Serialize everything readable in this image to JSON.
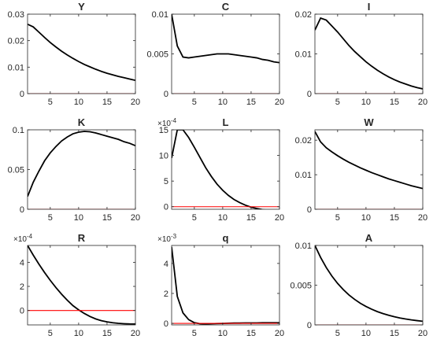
{
  "chart_data": [
    {
      "type": "line",
      "title": "Y",
      "xlim": [
        1,
        20
      ],
      "ylim": [
        0,
        0.03
      ],
      "xticks": [
        5,
        10,
        15,
        20
      ],
      "xtick_labels": [
        "5",
        "10",
        "15",
        "20"
      ],
      "yticks": [
        0,
        0.01,
        0.02,
        0.03
      ],
      "ytick_labels": [
        "0",
        "0.01",
        "0.02",
        "0.03"
      ],
      "exponent": "",
      "x": [
        1,
        2,
        3,
        4,
        5,
        6,
        7,
        8,
        9,
        10,
        11,
        12,
        13,
        14,
        15,
        16,
        17,
        18,
        19,
        20
      ],
      "series": [
        {
          "values": [
            0.0262,
            0.0252,
            0.0232,
            0.0212,
            0.0193,
            0.0176,
            0.016,
            0.0146,
            0.0133,
            0.0121,
            0.011,
            0.0101,
            0.0092,
            0.0084,
            0.0077,
            0.0071,
            0.0065,
            0.006,
            0.0055,
            0.005
          ],
          "color": "#000000"
        },
        {
          "values": [
            0,
            0,
            0,
            0,
            0,
            0,
            0,
            0,
            0,
            0,
            0,
            0,
            0,
            0,
            0,
            0,
            0,
            0,
            0,
            0
          ],
          "color": "#ff0000"
        }
      ]
    },
    {
      "type": "line",
      "title": "C",
      "xlim": [
        1,
        20
      ],
      "ylim": [
        0,
        0.01
      ],
      "xticks": [
        5,
        10,
        15,
        20
      ],
      "xtick_labels": [
        "5",
        "10",
        "15",
        "20"
      ],
      "yticks": [
        0,
        0.005,
        0.01
      ],
      "ytick_labels": [
        "0",
        "0.005",
        "0.01"
      ],
      "exponent": "",
      "x": [
        1,
        2,
        3,
        4,
        5,
        6,
        7,
        8,
        9,
        10,
        11,
        12,
        13,
        14,
        15,
        16,
        17,
        18,
        19,
        20
      ],
      "series": [
        {
          "values": [
            0.01,
            0.006,
            0.0046,
            0.0045,
            0.0046,
            0.0047,
            0.0048,
            0.0049,
            0.005,
            0.005,
            0.005,
            0.0049,
            0.0048,
            0.0047,
            0.0046,
            0.0045,
            0.0043,
            0.0042,
            0.004,
            0.0039
          ],
          "color": "#000000"
        },
        {
          "values": [
            0,
            0,
            0,
            0,
            0,
            0,
            0,
            0,
            0,
            0,
            0,
            0,
            0,
            0,
            0,
            0,
            0,
            0,
            0,
            0
          ],
          "color": "#ff0000"
        }
      ]
    },
    {
      "type": "line",
      "title": "I",
      "xlim": [
        1,
        20
      ],
      "ylim": [
        0,
        0.02
      ],
      "xticks": [
        5,
        10,
        15,
        20
      ],
      "xtick_labels": [
        "5",
        "10",
        "15",
        "20"
      ],
      "yticks": [
        0,
        0.01,
        0.02
      ],
      "ytick_labels": [
        "0",
        "0.01",
        "0.02"
      ],
      "exponent": "",
      "x": [
        1,
        2,
        3,
        4,
        5,
        6,
        7,
        8,
        9,
        10,
        11,
        12,
        13,
        14,
        15,
        16,
        17,
        18,
        19,
        20
      ],
      "series": [
        {
          "values": [
            0.016,
            0.019,
            0.0185,
            0.017,
            0.0155,
            0.0138,
            0.0121,
            0.0106,
            0.0093,
            0.008,
            0.0069,
            0.0059,
            0.005,
            0.0042,
            0.0035,
            0.0029,
            0.0024,
            0.0019,
            0.0015,
            0.0012
          ],
          "color": "#000000"
        },
        {
          "values": [
            0,
            0,
            0,
            0,
            0,
            0,
            0,
            0,
            0,
            0,
            0,
            0,
            0,
            0,
            0,
            0,
            0,
            0,
            0,
            0
          ],
          "color": "#ff0000"
        }
      ]
    },
    {
      "type": "line",
      "title": "K",
      "xlim": [
        1,
        20
      ],
      "ylim": [
        0,
        0.1
      ],
      "xticks": [
        5,
        10,
        15,
        20
      ],
      "xtick_labels": [
        "5",
        "10",
        "15",
        "20"
      ],
      "yticks": [
        0,
        0.05,
        0.1
      ],
      "ytick_labels": [
        "0",
        "0.05",
        "0.1"
      ],
      "exponent": "",
      "x": [
        1,
        2,
        3,
        4,
        5,
        6,
        7,
        8,
        9,
        10,
        11,
        12,
        13,
        14,
        15,
        16,
        17,
        18,
        19,
        20
      ],
      "series": [
        {
          "values": [
            0.016,
            0.034,
            0.048,
            0.061,
            0.071,
            0.079,
            0.086,
            0.091,
            0.095,
            0.097,
            0.098,
            0.0975,
            0.096,
            0.094,
            0.092,
            0.09,
            0.088,
            0.085,
            0.083,
            0.08
          ],
          "color": "#000000"
        },
        {
          "values": [
            0,
            0,
            0,
            0,
            0,
            0,
            0,
            0,
            0,
            0,
            0,
            0,
            0,
            0,
            0,
            0,
            0,
            0,
            0,
            0
          ],
          "color": "#ff0000"
        }
      ]
    },
    {
      "type": "line",
      "title": "L",
      "xlim": [
        1,
        20
      ],
      "ylim": [
        -0.5,
        15
      ],
      "xticks": [
        5,
        10,
        15,
        20
      ],
      "xtick_labels": [
        "5",
        "10",
        "15",
        "20"
      ],
      "yticks": [
        0,
        5,
        10,
        15
      ],
      "ytick_labels": [
        "0",
        "5",
        "10",
        "15"
      ],
      "exponent": "×10^-4",
      "x": [
        1,
        2,
        3,
        4,
        5,
        6,
        7,
        8,
        9,
        10,
        11,
        12,
        13,
        14,
        15,
        16,
        17,
        18,
        19,
        20
      ],
      "series": [
        {
          "values": [
            9.5,
            15.0,
            15.0,
            13.5,
            11.6,
            9.6,
            7.6,
            5.9,
            4.4,
            3.2,
            2.2,
            1.4,
            0.8,
            0.3,
            -0.1,
            -0.35,
            -0.55,
            -0.7,
            -0.8,
            -0.85
          ],
          "color": "#000000"
        },
        {
          "values": [
            0,
            0,
            0,
            0,
            0,
            0,
            0,
            0,
            0,
            0,
            0,
            0,
            0,
            0,
            0,
            0,
            0,
            0,
            0,
            0
          ],
          "color": "#ff0000"
        }
      ]
    },
    {
      "type": "line",
      "title": "W",
      "xlim": [
        1,
        20
      ],
      "ylim": [
        0,
        0.023
      ],
      "xticks": [
        5,
        10,
        15,
        20
      ],
      "xtick_labels": [
        "5",
        "10",
        "15",
        "20"
      ],
      "yticks": [
        0,
        0.01,
        0.02
      ],
      "ytick_labels": [
        "0",
        "0.01",
        "0.02"
      ],
      "exponent": "",
      "x": [
        1,
        2,
        3,
        4,
        5,
        6,
        7,
        8,
        9,
        10,
        11,
        12,
        13,
        14,
        15,
        16,
        17,
        18,
        19,
        20
      ],
      "series": [
        {
          "values": [
            0.0225,
            0.0195,
            0.0178,
            0.0166,
            0.0155,
            0.0145,
            0.0136,
            0.0128,
            0.012,
            0.0113,
            0.0106,
            0.01,
            0.0094,
            0.0088,
            0.0083,
            0.0078,
            0.0073,
            0.0068,
            0.0064,
            0.006
          ],
          "color": "#000000"
        },
        {
          "values": [
            0,
            0,
            0,
            0,
            0,
            0,
            0,
            0,
            0,
            0,
            0,
            0,
            0,
            0,
            0,
            0,
            0,
            0,
            0,
            0
          ],
          "color": "#ff0000"
        }
      ]
    },
    {
      "type": "line",
      "title": "R",
      "xlim": [
        1,
        20
      ],
      "ylim": [
        -1.2,
        5.4
      ],
      "xticks": [
        5,
        10,
        15,
        20
      ],
      "xtick_labels": [
        "5",
        "10",
        "15",
        "20"
      ],
      "yticks": [
        0,
        2,
        4
      ],
      "ytick_labels": [
        "0",
        "2",
        "4"
      ],
      "exponent": "×10^-4",
      "x": [
        1,
        2,
        3,
        4,
        5,
        6,
        7,
        8,
        9,
        10,
        11,
        12,
        13,
        14,
        15,
        16,
        17,
        18,
        19,
        20
      ],
      "series": [
        {
          "values": [
            5.4,
            4.6,
            3.85,
            3.15,
            2.5,
            1.9,
            1.35,
            0.85,
            0.4,
            0.05,
            -0.25,
            -0.5,
            -0.7,
            -0.85,
            -0.95,
            -1.02,
            -1.07,
            -1.1,
            -1.12,
            -1.13
          ],
          "color": "#000000"
        },
        {
          "values": [
            0,
            0,
            0,
            0,
            0,
            0,
            0,
            0,
            0,
            0,
            0,
            0,
            0,
            0,
            0,
            0,
            0,
            0,
            0,
            0
          ],
          "color": "#ff0000"
        }
      ]
    },
    {
      "type": "line",
      "title": "q",
      "xlim": [
        1,
        20
      ],
      "ylim": [
        -0.1,
        5.2
      ],
      "xticks": [
        5,
        10,
        15,
        20
      ],
      "xtick_labels": [
        "5",
        "10",
        "15",
        "20"
      ],
      "yticks": [
        0,
        2,
        4
      ],
      "ytick_labels": [
        "0",
        "2",
        "4"
      ],
      "exponent": "×10^-3",
      "x": [
        1,
        2,
        3,
        4,
        5,
        6,
        7,
        8,
        9,
        10,
        11,
        12,
        13,
        14,
        15,
        16,
        17,
        18,
        19,
        20
      ],
      "series": [
        {
          "values": [
            5.1,
            1.8,
            0.7,
            0.25,
            0.05,
            -0.02,
            -0.03,
            -0.02,
            -0.01,
            0.0,
            0.01,
            0.02,
            0.02,
            0.03,
            0.03,
            0.03,
            0.04,
            0.04,
            0.04,
            0.04
          ],
          "color": "#000000"
        },
        {
          "values": [
            0,
            0,
            0,
            0,
            0,
            0,
            0,
            0,
            0,
            0,
            0,
            0,
            0,
            0,
            0,
            0,
            0,
            0,
            0,
            0
          ],
          "color": "#ff0000"
        }
      ]
    },
    {
      "type": "line",
      "title": "A",
      "xlim": [
        1,
        20
      ],
      "ylim": [
        0,
        0.01
      ],
      "xticks": [
        5,
        10,
        15,
        20
      ],
      "xtick_labels": [
        "5",
        "10",
        "15",
        "20"
      ],
      "yticks": [
        0,
        0.005,
        0.01
      ],
      "ytick_labels": [
        "0",
        "0.005",
        "0.01"
      ],
      "exponent": "",
      "x": [
        1,
        2,
        3,
        4,
        5,
        6,
        7,
        8,
        9,
        10,
        11,
        12,
        13,
        14,
        15,
        16,
        17,
        18,
        19,
        20
      ],
      "series": [
        {
          "values": [
            0.01,
            0.0085,
            0.00722,
            0.00614,
            0.00522,
            0.00444,
            0.00377,
            0.00321,
            0.00272,
            0.00232,
            0.00197,
            0.00167,
            0.00142,
            0.00121,
            0.00103,
            0.00087,
            0.00074,
            0.00063,
            0.00054,
            0.00046
          ],
          "color": "#000000"
        },
        {
          "values": [
            0,
            0,
            0,
            0,
            0,
            0,
            0,
            0,
            0,
            0,
            0,
            0,
            0,
            0,
            0,
            0,
            0,
            0,
            0,
            0
          ],
          "color": "#ff0000"
        }
      ]
    }
  ]
}
